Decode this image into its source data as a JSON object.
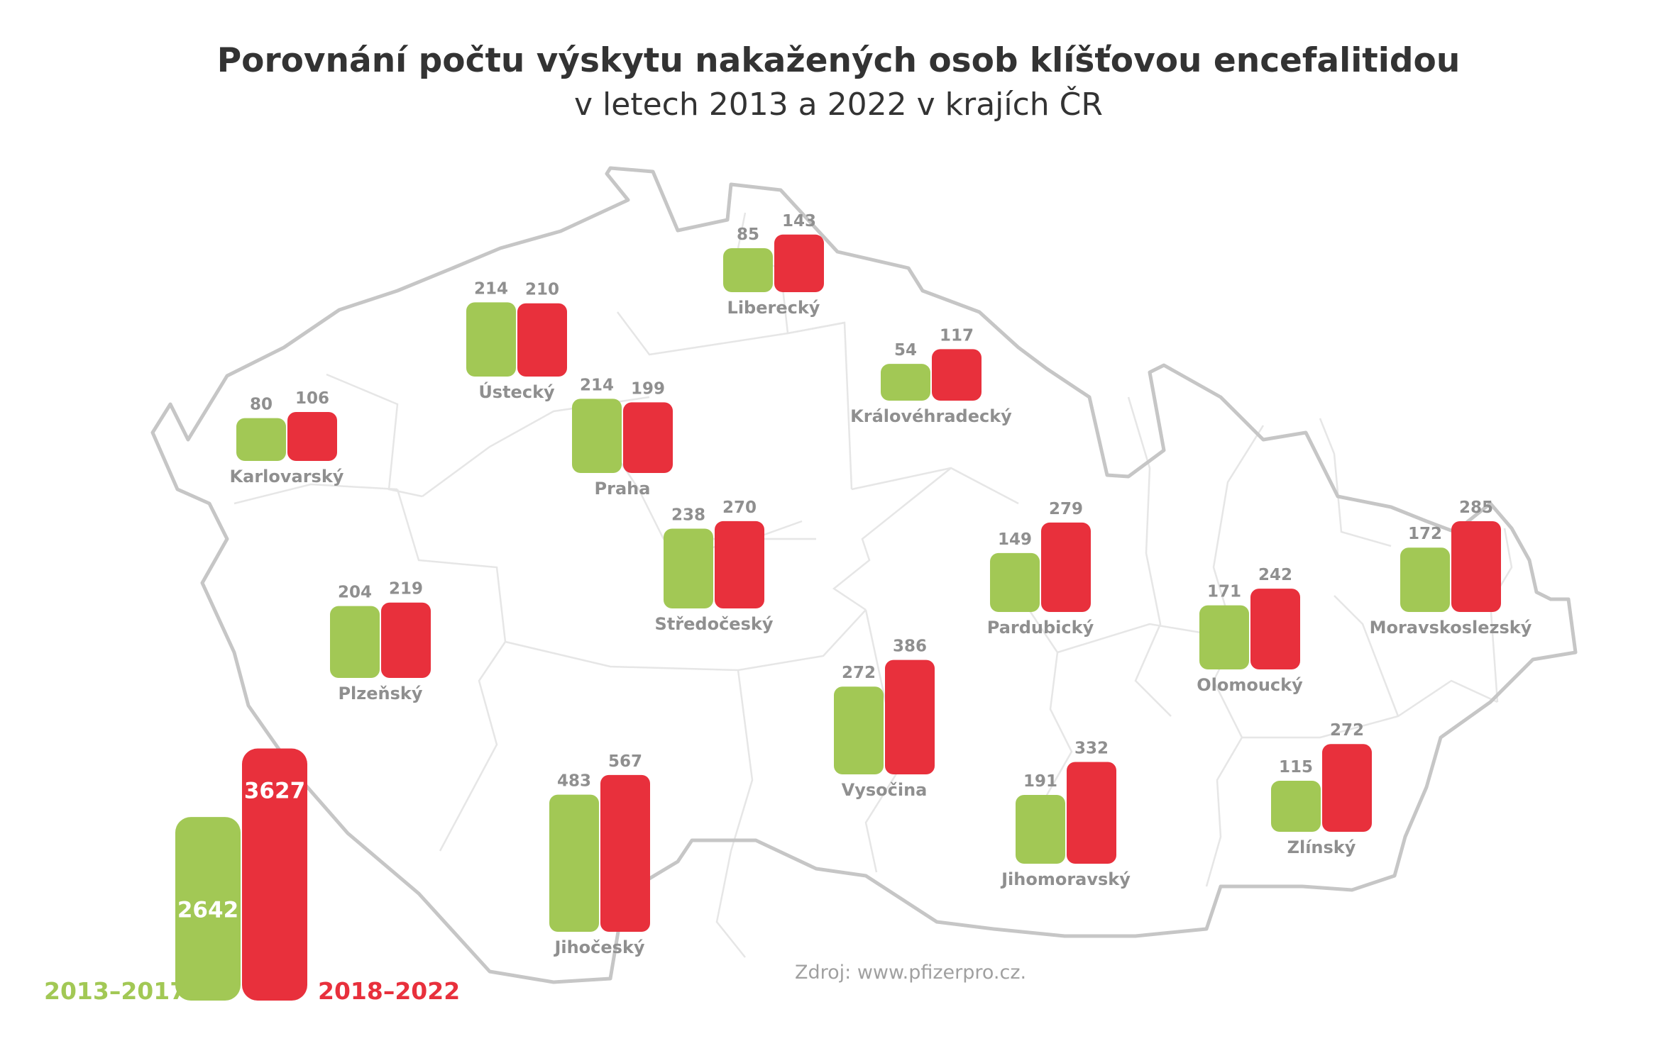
{
  "header": {
    "title": "Porovnání počtu výskytu nakažených osob klíšťovou encefalitidou",
    "subtitle": "v letech 2013 a 2022 v krajích ČR"
  },
  "source": "Zdroj: www.pfizerpro.cz.",
  "colors": {
    "period1": "#a2c855",
    "period2": "#e8303c",
    "label": "#8f8f8f",
    "border": "#c6c6c6"
  },
  "chart_data": {
    "type": "bar",
    "title": "Porovnání počtu výskytu nakažených osob klíšťovou encefalitidou",
    "subtitle": "v letech 2013 a 2022 v krajích ČR",
    "series": [
      {
        "name": "2013–2017",
        "color": "#a2c855",
        "values": [
          80,
          214,
          85,
          54,
          214,
          238,
          149,
          171,
          172,
          204,
          483,
          272,
          191,
          115
        ]
      },
      {
        "name": "2018–2022",
        "color": "#e8303c",
        "values": [
          106,
          210,
          143,
          117,
          199,
          270,
          279,
          242,
          285,
          219,
          567,
          386,
          332,
          272
        ]
      }
    ],
    "categories": [
      "Karlovarský",
      "Ústecký",
      "Liberecký",
      "Královéhradecký",
      "Praha",
      "Středočeský",
      "Pardubický",
      "Olomoucký",
      "Moravskoslezský",
      "Plzeňský",
      "Jihočeský",
      "Vysočina",
      "Jihomoravský",
      "Zlínský"
    ],
    "totals": {
      "categories": [
        "2013–2017",
        "2018–2022"
      ],
      "values": [
        2642,
        3627
      ]
    }
  }
}
